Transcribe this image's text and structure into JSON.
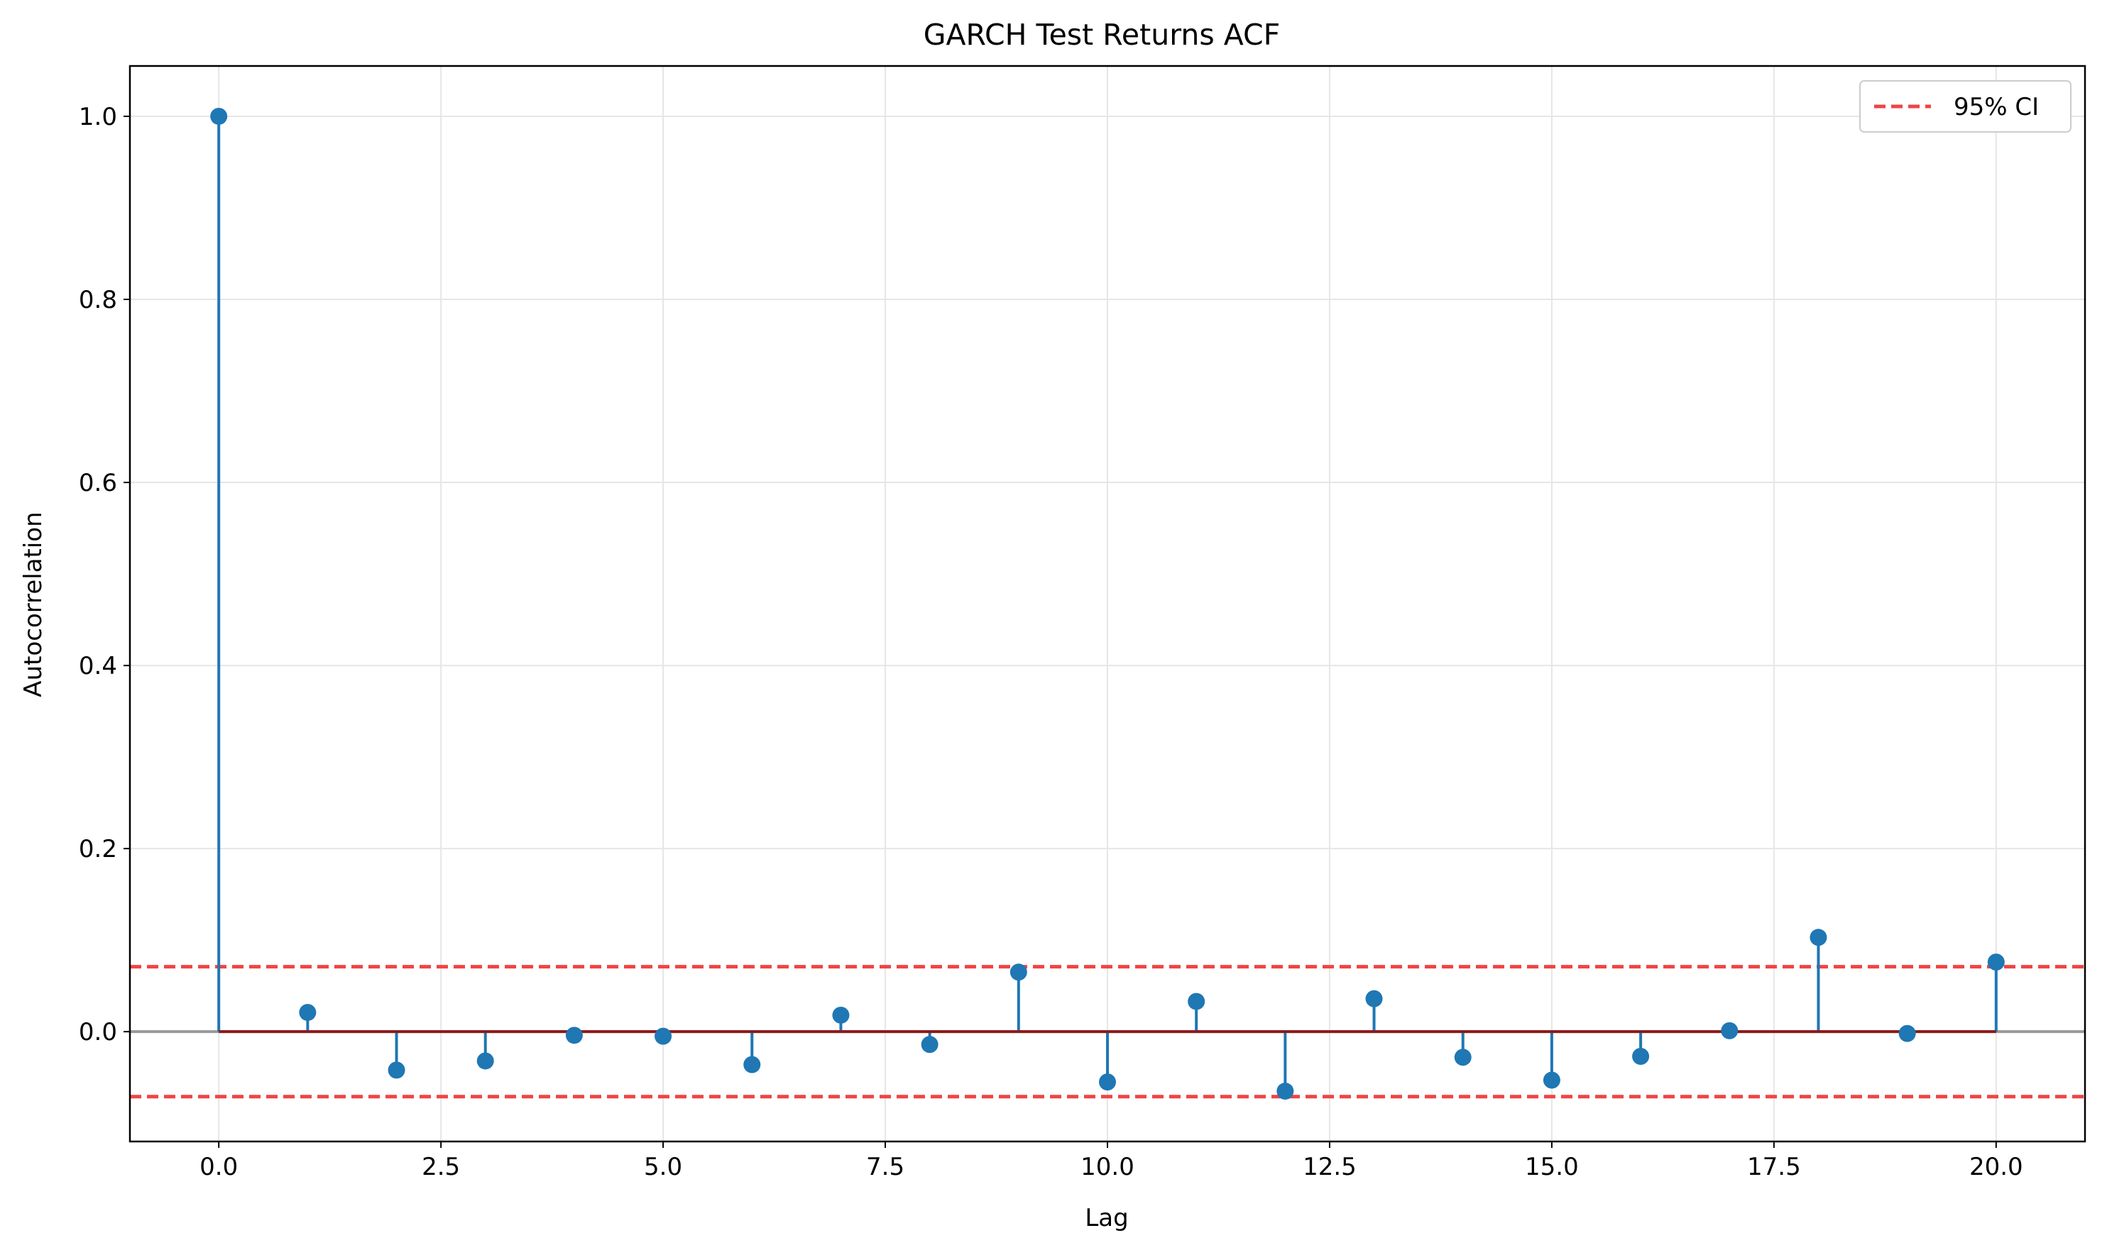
{
  "chart_data": {
    "type": "stem",
    "title": "GARCH Test Returns ACF",
    "xlabel": "Lag",
    "ylabel": "Autocorrelation",
    "xlim": [
      -1,
      21
    ],
    "ylim": [
      -0.12,
      1.055
    ],
    "x_ticks": [
      0,
      2.5,
      5,
      7.5,
      10,
      12.5,
      15,
      17.5,
      20
    ],
    "x_tick_labels": [
      "0.0",
      "2.5",
      "5.0",
      "7.5",
      "10.0",
      "12.5",
      "15.0",
      "17.5",
      "20.0"
    ],
    "y_ticks": [
      0,
      0.2,
      0.4,
      0.6,
      0.8,
      1.0
    ],
    "y_tick_labels": [
      "0.0",
      "0.2",
      "0.4",
      "0.6",
      "0.8",
      "1.0"
    ],
    "grid": true,
    "legend_position": "top-right",
    "x": [
      0,
      1,
      2,
      3,
      4,
      5,
      6,
      7,
      8,
      9,
      10,
      11,
      12,
      13,
      14,
      15,
      16,
      17,
      18,
      19,
      20
    ],
    "values": [
      1.0,
      0.021,
      -0.042,
      -0.032,
      -0.004,
      -0.005,
      -0.036,
      0.018,
      -0.014,
      0.065,
      -0.055,
      0.033,
      -0.065,
      0.036,
      -0.028,
      -0.053,
      -0.027,
      0.001,
      0.103,
      -0.002,
      0.076
    ],
    "confidence_interval": {
      "label": "95% CI",
      "upper": 0.071,
      "lower": -0.071,
      "color": "#ef4444"
    },
    "colors": {
      "stem": "#1f77b4",
      "baseline": "#8b1a1a",
      "zero_line": "#999999",
      "grid": "#e6e6e6"
    }
  }
}
